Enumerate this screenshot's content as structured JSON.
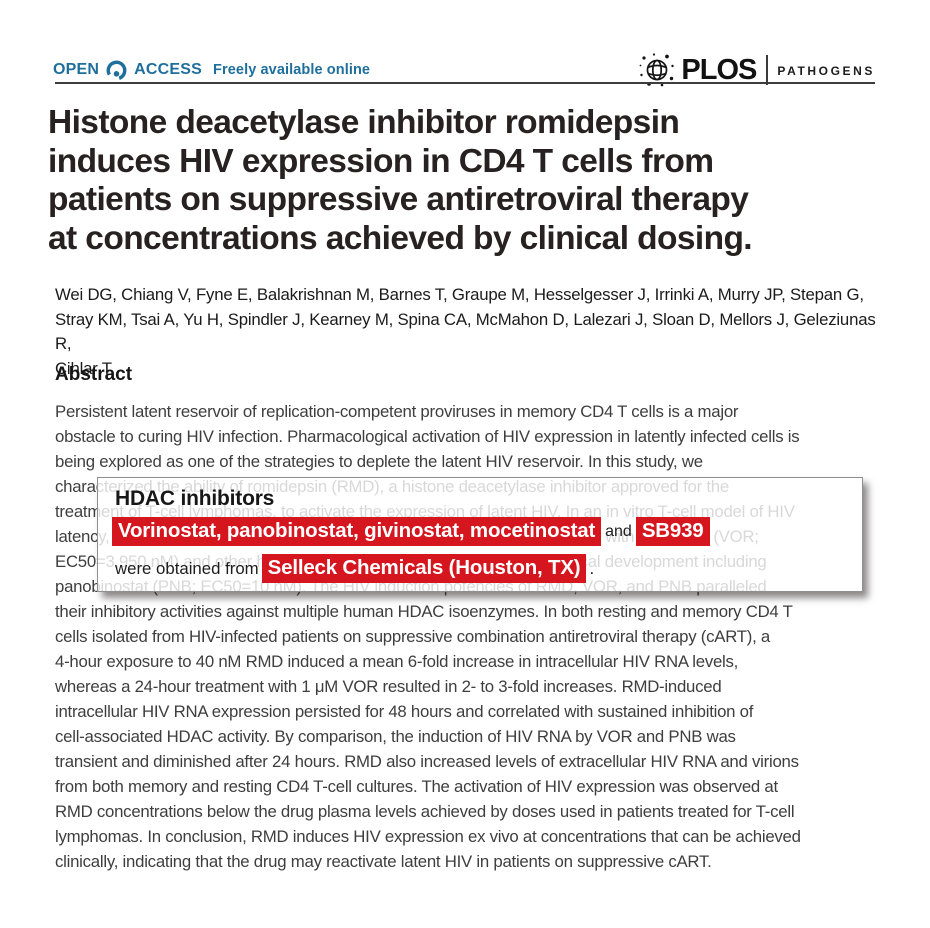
{
  "colors": {
    "accent_blue": "#1f6f9c",
    "highlight_red": "#d6161f",
    "title_color": "#272122",
    "body_color": "#3f3e3e",
    "rule_color": "#3d3d3d"
  },
  "header": {
    "open_label": "OPEN",
    "access_label": "ACCESS",
    "freely_label": "Freely available online",
    "plos_wordmark": "PLOS",
    "journal_name": "PATHOGENS"
  },
  "icons": {
    "open_access_lock": "open-lock-icon",
    "plos_globe": "globe-sketch-icon"
  },
  "title_lines": [
    "Histone deacetylase inhibitor romidepsin",
    "induces HIV expression in CD4 T cells from",
    "patients on suppressive antiretroviral therapy",
    "at concentrations achieved by clinical dosing."
  ],
  "authors_lines": [
    "Wei DG, Chiang V, Fyne E, Balakrishnan M, Barnes T, Graupe M, Hesselgesser J, Irrinki A, Murry JP, Stepan G,",
    "Stray KM, Tsai A, Yu H, Spindler J, Kearney M, Spina CA, McMahon D, Lalezari J, Sloan D, Mellors J, Geleziunas R,",
    "Cihlar T."
  ],
  "abstract": {
    "heading": "Abstract",
    "lines": [
      "Persistent latent reservoir of replication-competent proviruses in memory CD4 T cells is a major",
      "obstacle to curing HIV infection. Pharmacological activation of HIV expression in latently infected cells is",
      "being explored as one of the strategies to deplete the latent HIV reservoir. In this study, we",
      "characterized the ability of romidepsin (RMD), a histone deacetylase inhibitor approved for the",
      "treatment of T-cell lymphomas, to activate the expression of latent HIV. In an in vitro T-cell model of HIV",
      "latency, RMD was the most potent inducer of HIV (EC50=4.5 nM) compared with vorinostat (VOR;",
      "EC50=3,950 nM) and other histone deacetylase (HDAC) inhibitors in clinical development including",
      "panobinostat (PNB; EC50=10 nM). The HIV induction potencies of RMD, VOR, and PNB paralleled",
      "their inhibitory activities against multiple human HDAC isoenzymes. In both resting and memory CD4 T",
      "cells isolated from HIV-infected patients on suppressive combination antiretroviral therapy (cART), a",
      "4-hour exposure to 40 nM RMD induced a mean 6-fold increase in intracellular HIV RNA levels,",
      "whereas a 24-hour treatment with 1 μM VOR resulted in 2- to 3-fold increases. RMD-induced",
      "intracellular HIV RNA expression persisted for 48 hours and correlated with sustained inhibition of",
      "cell-associated HDAC activity. By comparison, the induction of HIV RNA by VOR and PNB was",
      "transient and diminished after 24 hours. RMD also increased levels of extracellular HIV RNA and virions",
      "from both memory and resting CD4 T-cell cultures. The activation of HIV expression was observed at",
      "RMD concentrations below the drug plasma levels achieved by doses used in patients treated for T-cell",
      "lymphomas. In conclusion, RMD induces HIV expression ex vivo at concentrations that can be achieved",
      "clinically, indicating that the drug may reactivate latent HIV in patients on suppressive cART."
    ]
  },
  "popup": {
    "heading": "HDAC inhibitors",
    "highlight_drugs": "Vorinostat, panobinostat, givinostat, mocetinostat",
    "connector": "and",
    "highlight_sb939": "SB939",
    "line2_prefix": "were obtained from",
    "highlight_vendor": "Selleck Chemicals (Houston, TX)",
    "line2_suffix": "."
  }
}
